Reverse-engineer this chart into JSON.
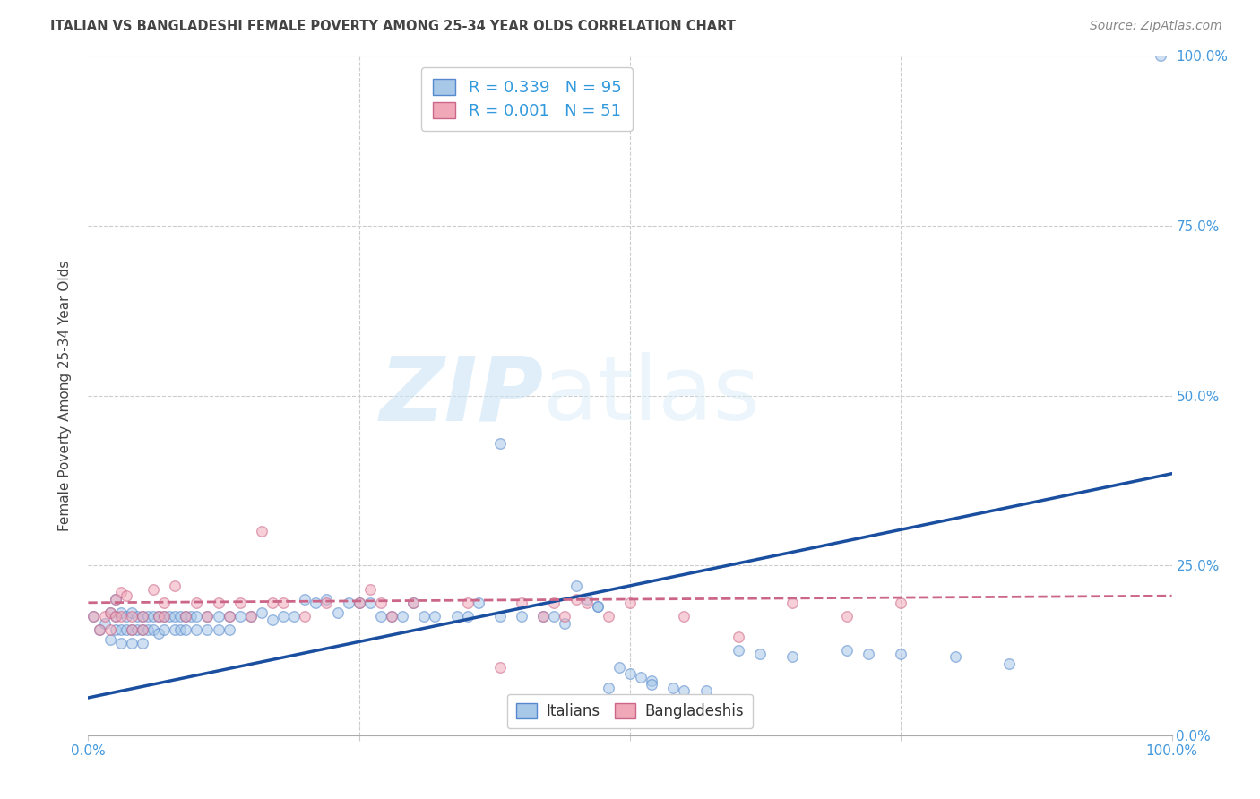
{
  "title": "ITALIAN VS BANGLADESHI FEMALE POVERTY AMONG 25-34 YEAR OLDS CORRELATION CHART",
  "source": "Source: ZipAtlas.com",
  "ylabel": "Female Poverty Among 25-34 Year Olds",
  "xlim": [
    0,
    1
  ],
  "ylim": [
    0.0,
    1.0
  ],
  "y_ticks": [
    0.0,
    0.25,
    0.5,
    0.75,
    1.0
  ],
  "y_ticklabels": [
    "0.0%",
    "25.0%",
    "50.0%",
    "75.0%",
    "100.0%"
  ],
  "x_ticks_bottom": [
    0.0,
    1.0
  ],
  "x_ticklabels_bottom": [
    "0.0%",
    "100.0%"
  ],
  "x_ticks_minor": [
    0.25,
    0.5,
    0.75
  ],
  "italian_color": "#a8c8e8",
  "italian_edge_color": "#5588cc",
  "bangladeshi_color": "#f0a8b8",
  "bangladeshi_edge_color": "#cc6688",
  "italian_line_color": "#1a4fa0",
  "bangladeshi_line_color": "#d04060",
  "watermark_zip": "ZIP",
  "watermark_atlas": "atlas",
  "legend_r_color": "#3399dd",
  "legend_n_color": "#3399dd",
  "legend_label_color": "#333333",
  "tick_color": "#4499dd",
  "grid_color": "#cccccc",
  "background_color": "#ffffff",
  "marker_size": 70,
  "marker_alpha": 0.55,
  "marker_linewidth": 1.0,
  "italian_trendline_x": [
    0.0,
    1.0
  ],
  "italian_trendline_y": [
    0.055,
    0.385
  ],
  "bangladeshi_trendline_x": [
    0.0,
    1.0
  ],
  "bangladeshi_trendline_y": [
    0.195,
    0.205
  ],
  "italian_data_x": [
    0.005,
    0.01,
    0.015,
    0.02,
    0.02,
    0.025,
    0.025,
    0.025,
    0.03,
    0.03,
    0.03,
    0.035,
    0.035,
    0.04,
    0.04,
    0.04,
    0.045,
    0.045,
    0.05,
    0.05,
    0.05,
    0.055,
    0.055,
    0.06,
    0.06,
    0.065,
    0.065,
    0.07,
    0.07,
    0.075,
    0.08,
    0.08,
    0.085,
    0.085,
    0.09,
    0.09,
    0.095,
    0.1,
    0.1,
    0.11,
    0.11,
    0.12,
    0.12,
    0.13,
    0.13,
    0.14,
    0.15,
    0.16,
    0.17,
    0.18,
    0.19,
    0.2,
    0.21,
    0.22,
    0.23,
    0.24,
    0.25,
    0.26,
    0.27,
    0.28,
    0.29,
    0.3,
    0.31,
    0.32,
    0.34,
    0.35,
    0.36,
    0.38,
    0.38,
    0.4,
    0.42,
    0.43,
    0.44,
    0.45,
    0.46,
    0.47,
    0.47,
    0.48,
    0.49,
    0.5,
    0.51,
    0.52,
    0.52,
    0.54,
    0.55,
    0.57,
    0.6,
    0.62,
    0.65,
    0.7,
    0.72,
    0.75,
    0.8,
    0.85,
    0.99
  ],
  "italian_data_y": [
    0.175,
    0.155,
    0.165,
    0.18,
    0.14,
    0.2,
    0.175,
    0.155,
    0.18,
    0.155,
    0.135,
    0.175,
    0.155,
    0.18,
    0.155,
    0.135,
    0.175,
    0.155,
    0.175,
    0.155,
    0.135,
    0.175,
    0.155,
    0.175,
    0.155,
    0.175,
    0.15,
    0.175,
    0.155,
    0.175,
    0.175,
    0.155,
    0.175,
    0.155,
    0.175,
    0.155,
    0.175,
    0.175,
    0.155,
    0.175,
    0.155,
    0.175,
    0.155,
    0.175,
    0.155,
    0.175,
    0.175,
    0.18,
    0.17,
    0.175,
    0.175,
    0.2,
    0.195,
    0.2,
    0.18,
    0.195,
    0.195,
    0.195,
    0.175,
    0.175,
    0.175,
    0.195,
    0.175,
    0.175,
    0.175,
    0.175,
    0.195,
    0.175,
    0.43,
    0.175,
    0.175,
    0.175,
    0.165,
    0.22,
    0.2,
    0.19,
    0.19,
    0.07,
    0.1,
    0.09,
    0.085,
    0.08,
    0.075,
    0.07,
    0.065,
    0.065,
    0.125,
    0.12,
    0.115,
    0.125,
    0.12,
    0.12,
    0.115,
    0.105,
    1.0
  ],
  "bangladeshi_data_x": [
    0.005,
    0.01,
    0.015,
    0.02,
    0.02,
    0.025,
    0.025,
    0.03,
    0.03,
    0.035,
    0.04,
    0.04,
    0.05,
    0.05,
    0.06,
    0.065,
    0.07,
    0.07,
    0.08,
    0.09,
    0.1,
    0.11,
    0.12,
    0.13,
    0.14,
    0.15,
    0.16,
    0.17,
    0.18,
    0.2,
    0.22,
    0.25,
    0.26,
    0.27,
    0.28,
    0.3,
    0.35,
    0.38,
    0.4,
    0.42,
    0.43,
    0.44,
    0.45,
    0.46,
    0.48,
    0.5,
    0.55,
    0.6,
    0.65,
    0.7,
    0.75
  ],
  "bangladeshi_data_y": [
    0.175,
    0.155,
    0.175,
    0.18,
    0.155,
    0.2,
    0.175,
    0.21,
    0.175,
    0.205,
    0.175,
    0.155,
    0.175,
    0.155,
    0.215,
    0.175,
    0.195,
    0.175,
    0.22,
    0.175,
    0.195,
    0.175,
    0.195,
    0.175,
    0.195,
    0.175,
    0.3,
    0.195,
    0.195,
    0.175,
    0.195,
    0.195,
    0.215,
    0.195,
    0.175,
    0.195,
    0.195,
    0.1,
    0.195,
    0.175,
    0.195,
    0.175,
    0.2,
    0.195,
    0.175,
    0.195,
    0.175,
    0.145,
    0.195,
    0.175,
    0.195
  ]
}
